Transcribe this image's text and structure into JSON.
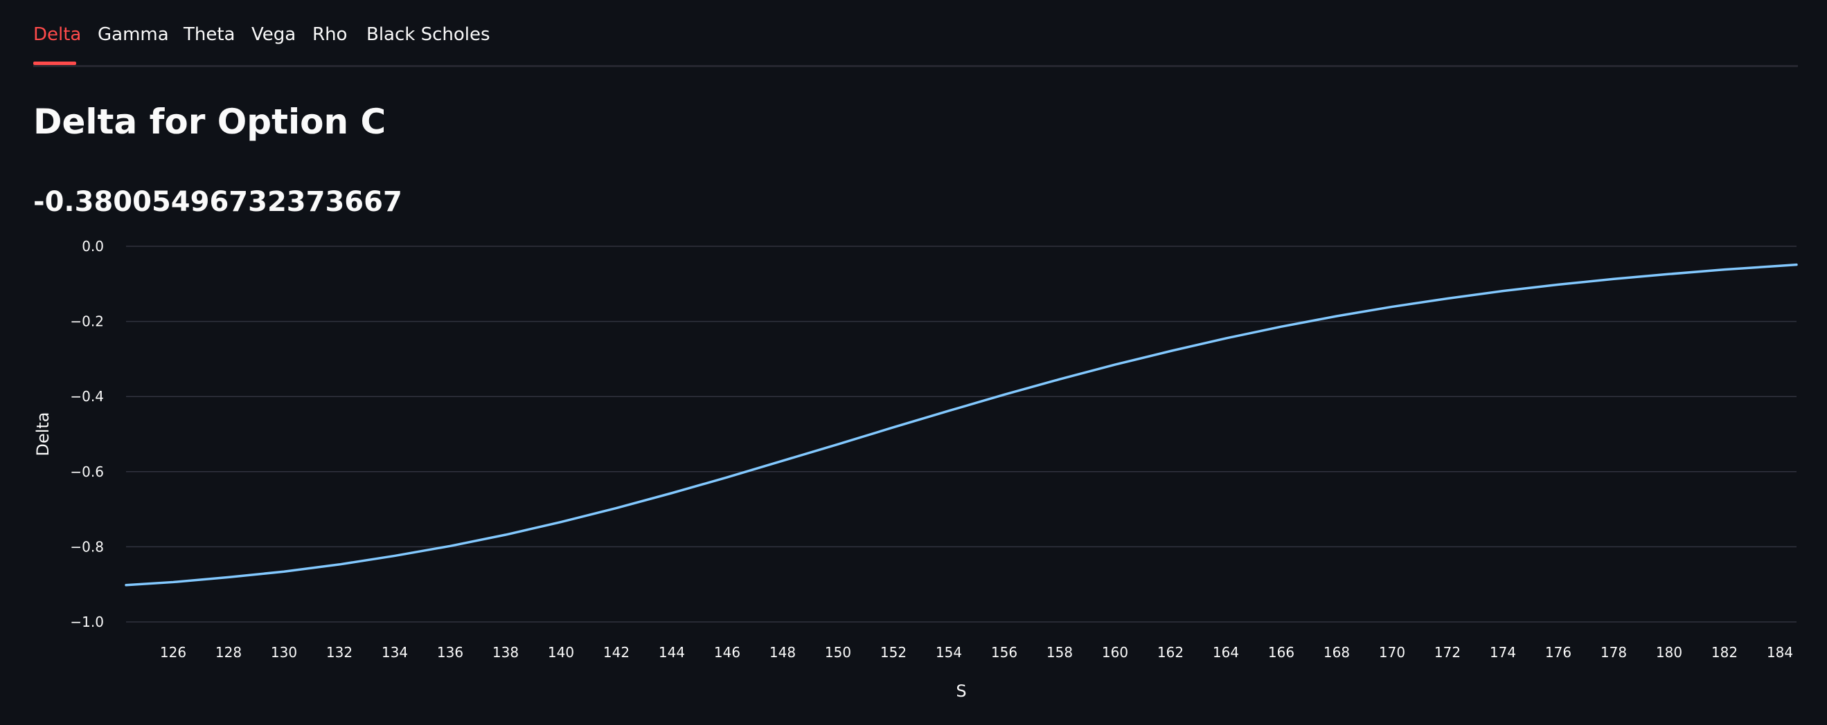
{
  "tabs": [
    {
      "label": "Delta",
      "active": true
    },
    {
      "label": "Gamma",
      "active": false
    },
    {
      "label": "Theta",
      "active": false
    },
    {
      "label": "Vega",
      "active": false
    },
    {
      "label": "Rho",
      "active": false
    },
    {
      "label": "Black Scholes",
      "active": false
    }
  ],
  "header": {
    "title": "Delta for Option C"
  },
  "metric": {
    "value": "-0.38005496732373667"
  },
  "colors": {
    "background": "#0e1117",
    "accent": "#ff4b4b",
    "line": "#83c9ff",
    "grid": "#31333f",
    "text": "#fafafa"
  },
  "chart_data": {
    "type": "line",
    "xlabel": "S",
    "ylabel": "Delta",
    "xlim": [
      124.3,
      184.6
    ],
    "ylim": [
      -1.0,
      0.0
    ],
    "x_ticks": [
      126,
      128,
      130,
      132,
      134,
      136,
      138,
      140,
      142,
      144,
      146,
      148,
      150,
      152,
      154,
      156,
      158,
      160,
      162,
      164,
      166,
      168,
      170,
      172,
      174,
      176,
      178,
      180,
      182,
      184
    ],
    "x_tick_labels": [
      "126",
      "128",
      "130",
      "132",
      "134",
      "136",
      "138",
      "140",
      "142",
      "144",
      "146",
      "148",
      "150",
      "152",
      "154",
      "156",
      "158",
      "160",
      "162",
      "164",
      "166",
      "168",
      "170",
      "172",
      "174",
      "176",
      "178",
      "180",
      "182",
      "184"
    ],
    "y_ticks": [
      0.0,
      -0.2,
      -0.4,
      -0.6,
      -0.8,
      -1.0
    ],
    "y_tick_labels": [
      "0.0",
      "−0.2",
      "−0.4",
      "−0.6",
      "−0.8",
      "−1.0"
    ],
    "grid": true,
    "series": [
      {
        "x": [
          124.3,
          126,
          128,
          130,
          132,
          134,
          136,
          138,
          140,
          142,
          144,
          146,
          148,
          150,
          152,
          154,
          156,
          158,
          160,
          162,
          164,
          166,
          168,
          170,
          172,
          174,
          176,
          178,
          180,
          182,
          184,
          184.6
        ],
        "values": [
          -0.902,
          -0.894,
          -0.881,
          -0.866,
          -0.847,
          -0.824,
          -0.798,
          -0.768,
          -0.734,
          -0.697,
          -0.657,
          -0.615,
          -0.571,
          -0.527,
          -0.482,
          -0.438,
          -0.395,
          -0.354,
          -0.315,
          -0.279,
          -0.245,
          -0.214,
          -0.186,
          -0.161,
          -0.139,
          -0.119,
          -0.102,
          -0.087,
          -0.074,
          -0.062,
          -0.052,
          -0.049
        ]
      }
    ]
  }
}
